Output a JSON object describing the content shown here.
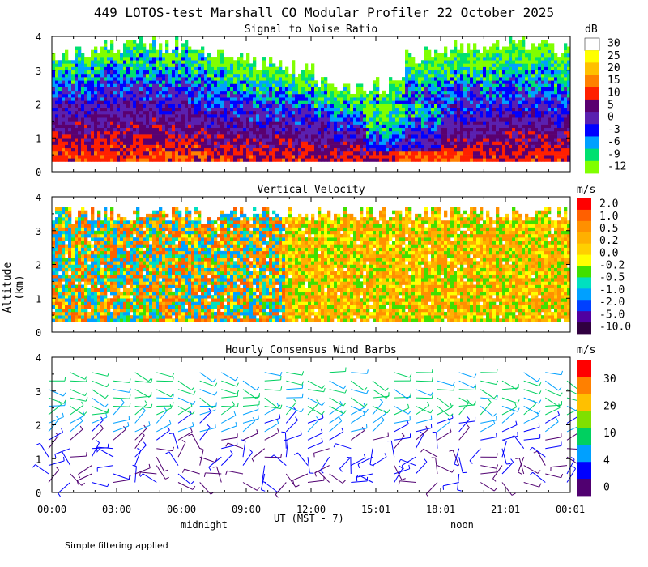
{
  "chart_data": [
    {
      "type": "heatmap",
      "title": "449 LOTOS-test Marshall CO Modular Profiler 22 October 2025",
      "panel_title": "Signal to Noise Ratio",
      "colorbar_unit": "dB",
      "colorbar_labels": [
        "30",
        "25",
        "20",
        "15",
        "10",
        "5",
        "0",
        "-3",
        "-6",
        "-9",
        "-12"
      ],
      "colorbar_colors": [
        "#ffffff",
        "#ffff00",
        "#ffc000",
        "#ff8000",
        "#ff2000",
        "#5a0070",
        "#5a20b0",
        "#0000ff",
        "#00a0ff",
        "#00e070",
        "#80ff00"
      ],
      "ylim": [
        0,
        4
      ],
      "y_ticks": [
        "0",
        "1",
        "2",
        "3",
        "4"
      ],
      "grid": false
    },
    {
      "type": "heatmap",
      "panel_title": "Vertical Velocity",
      "colorbar_unit": "m/s",
      "colorbar_labels": [
        "2.0",
        "1.0",
        "0.5",
        "0.2",
        "0.0",
        "-0.2",
        "-0.5",
        "-1.0",
        "-2.0",
        "-5.0",
        "-10.0"
      ],
      "colorbar_colors": [
        "#ff0000",
        "#ff6000",
        "#ff9000",
        "#ffb000",
        "#ffd000",
        "#ffff00",
        "#40e000",
        "#00e0c0",
        "#00a0ff",
        "#0040ff",
        "#5000a0",
        "#300040"
      ],
      "ylim": [
        0,
        4
      ],
      "y_ticks": [
        "0",
        "1",
        "2",
        "3",
        "4"
      ],
      "grid": false
    },
    {
      "type": "scatter",
      "panel_title": "Hourly Consensus Wind Barbs",
      "colorbar_unit": "m/s",
      "colorbar_labels": [
        "30",
        "20",
        "10",
        "4",
        "0"
      ],
      "colorbar_colors": [
        "#ff0000",
        "#ff8000",
        "#ffc000",
        "#80e000",
        "#00d060",
        "#00a0ff",
        "#0000ff",
        "#500070"
      ],
      "ylim": [
        0,
        4
      ],
      "y_ticks": [
        "0",
        "1",
        "2",
        "3",
        "4"
      ],
      "grid": false
    }
  ],
  "axes": {
    "ylabel": "Altitude (km)",
    "x_ticks": [
      "00:00",
      "03:00",
      "06:00",
      "09:00",
      "12:00",
      "15:01",
      "18:01",
      "21:01",
      "00:01"
    ],
    "xlabel": "UT  (MST - 7)",
    "midnight_label": "midnight",
    "noon_label": "noon"
  },
  "footer": {
    "note": "Simple filtering applied"
  }
}
